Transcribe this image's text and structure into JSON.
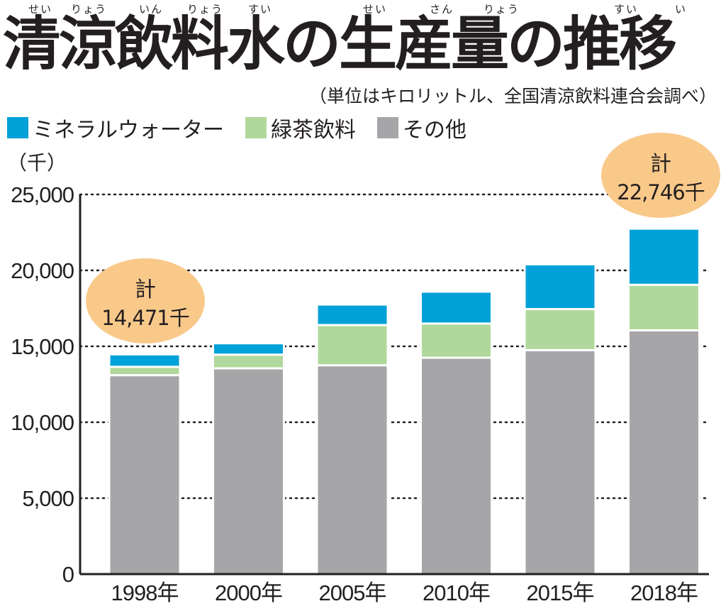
{
  "title": {
    "text": "清涼飲料水の生産量の推移",
    "ruby": [
      "せい",
      "りょう",
      "いん",
      "りょう",
      "すい",
      "せい",
      "さん",
      "りょう",
      "すい",
      "い"
    ]
  },
  "source": "（単位はキロリットル、全国清涼飲料連合会調べ）",
  "unit_label": "（千）",
  "colors": {
    "mineral": "#00a0d8",
    "greentea": "#b1d89c",
    "other": "#a6a6a8",
    "callout": "#f9c98a",
    "axis": "#231f20"
  },
  "legend": [
    {
      "key": "mineral",
      "label": "ミネラルウォーター"
    },
    {
      "key": "greentea",
      "label": "緑茶飲料"
    },
    {
      "key": "other",
      "label": "その他"
    }
  ],
  "chart_data": {
    "type": "bar",
    "stacked": true,
    "title": "清涼飲料水の生産量の推移",
    "ylabel": "（千）",
    "ylim": [
      0,
      25000
    ],
    "yticks": [
      0,
      5000,
      10000,
      15000,
      20000,
      25000
    ],
    "ytick_labels": [
      "0",
      "5,000",
      "10,000",
      "15,000",
      "20,000",
      "25,000"
    ],
    "grid": true,
    "legend_position": "top-left",
    "categories": [
      "1998年",
      "2000年",
      "2005年",
      "2010年",
      "2015年",
      "2018年"
    ],
    "series": [
      {
        "name": "その他",
        "key": "other",
        "values": [
          13100,
          13550,
          13750,
          14250,
          14750,
          16050
        ]
      },
      {
        "name": "緑茶飲料",
        "key": "greentea",
        "values": [
          550,
          900,
          2650,
          2250,
          2700,
          3000
        ]
      },
      {
        "name": "ミネラルウォーター",
        "key": "mineral",
        "values": [
          821,
          750,
          1350,
          2100,
          2950,
          3696
        ]
      }
    ],
    "annotations": [
      {
        "category": "1998年",
        "label": "計",
        "value": "14,471千"
      },
      {
        "category": "2018年",
        "label": "計",
        "value": "22,746千"
      }
    ]
  }
}
